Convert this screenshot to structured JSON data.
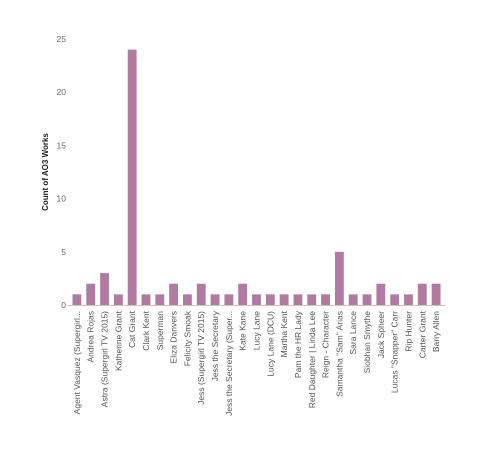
{
  "chart_data": {
    "type": "bar",
    "ylabel": "Count of AO3 Works",
    "xlabel": "",
    "ylim": [
      0,
      25
    ],
    "yticks": [
      0,
      5,
      10,
      15,
      20,
      25
    ],
    "grid": false,
    "bar_color": "#b07aa1",
    "axis_color": "#c8c8c8",
    "categories": [
      "Agent Vasquez (Supergirl...",
      "Andrea Rojas",
      "Astra (Supergirl TV 2015)",
      "Katherine Grant",
      "Cat Grant",
      "Clark Kent",
      "Superman",
      "Eliza Danvers",
      "Felicity Smoak",
      "Jess (Supergirl TV 2015)",
      "Jess the Secretary",
      "Jess the Secretary (Super...",
      "Kate Kane",
      "Lucy Lane",
      "Lucy Lane (DCU)",
      "Martha Kent",
      "Pam the HR Lady",
      "Red Daughter | Linda Lee",
      "Reign - Character",
      "Samantha \"Sam\" Arias",
      "Sara Lance",
      "Siobhan Smythe",
      "Jack Spheer",
      "Lucas \"Snapper\" Carr",
      "Rip Hunter",
      "Carter Grant",
      "Barry Allen"
    ],
    "values": [
      1,
      2,
      3,
      1,
      24,
      1,
      1,
      2,
      1,
      2,
      1,
      1,
      2,
      1,
      1,
      1,
      1,
      1,
      1,
      5,
      1,
      1,
      2,
      1,
      1,
      2,
      2
    ]
  }
}
